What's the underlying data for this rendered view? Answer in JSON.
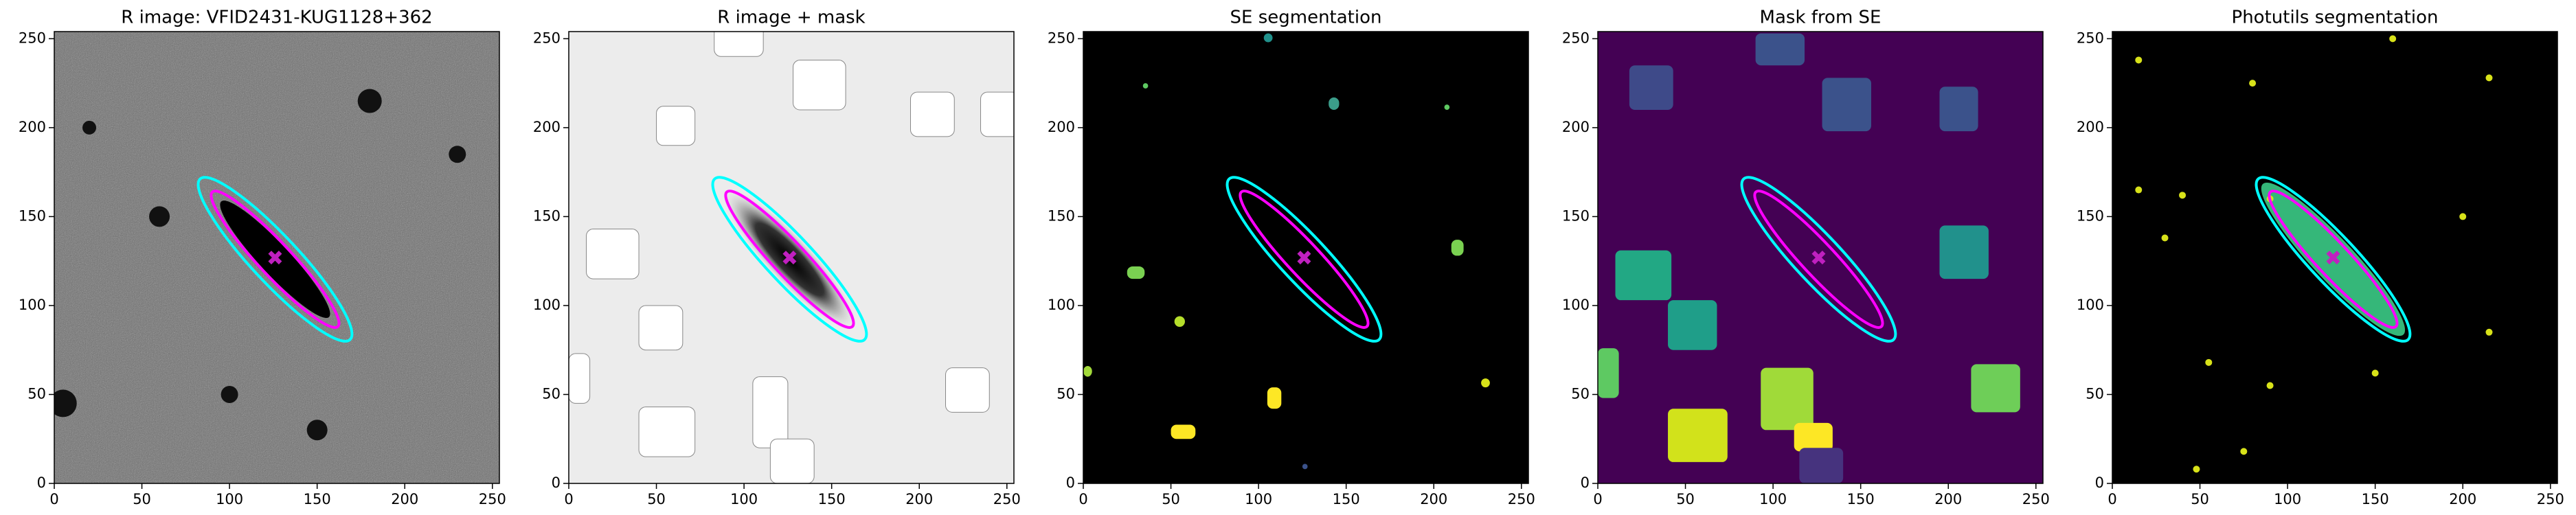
{
  "chart_data": [
    {
      "type": "image",
      "title": "R image: VFID2431-KUG1128+362",
      "background": "#6e6e6e",
      "xlim": [
        0,
        254
      ],
      "ylim": [
        0,
        254
      ],
      "xticks": [
        0,
        50,
        100,
        150,
        200,
        250
      ],
      "yticks": [
        0,
        50,
        100,
        150,
        200,
        250
      ]
    },
    {
      "type": "image",
      "title": "R image + mask",
      "background": "#ececec",
      "xlim": [
        0,
        254
      ],
      "ylim": [
        0,
        254
      ],
      "xticks": [
        0,
        50,
        100,
        150,
        200,
        250
      ],
      "yticks": [
        0,
        50,
        100,
        150,
        200,
        250
      ]
    },
    {
      "type": "image",
      "title": "SE segmentation",
      "background": "#000000",
      "xlim": [
        0,
        254
      ],
      "ylim": [
        0,
        254
      ],
      "xticks": [
        0,
        50,
        100,
        150,
        200,
        250
      ],
      "yticks": [
        0,
        50,
        100,
        150,
        200,
        250
      ]
    },
    {
      "type": "image",
      "title": "Mask from SE",
      "background": "#440154",
      "xlim": [
        0,
        254
      ],
      "ylim": [
        0,
        254
      ],
      "xticks": [
        0,
        50,
        100,
        150,
        200,
        250
      ],
      "yticks": [
        0,
        50,
        100,
        150,
        200,
        250
      ]
    },
    {
      "type": "image",
      "title": "Photutils segmentation",
      "background": "#000000",
      "xlim": [
        0,
        254
      ],
      "ylim": [
        0,
        254
      ],
      "xticks": [
        0,
        50,
        100,
        150,
        200,
        250
      ],
      "yticks": [
        0,
        50,
        100,
        150,
        200,
        250
      ]
    }
  ]
}
